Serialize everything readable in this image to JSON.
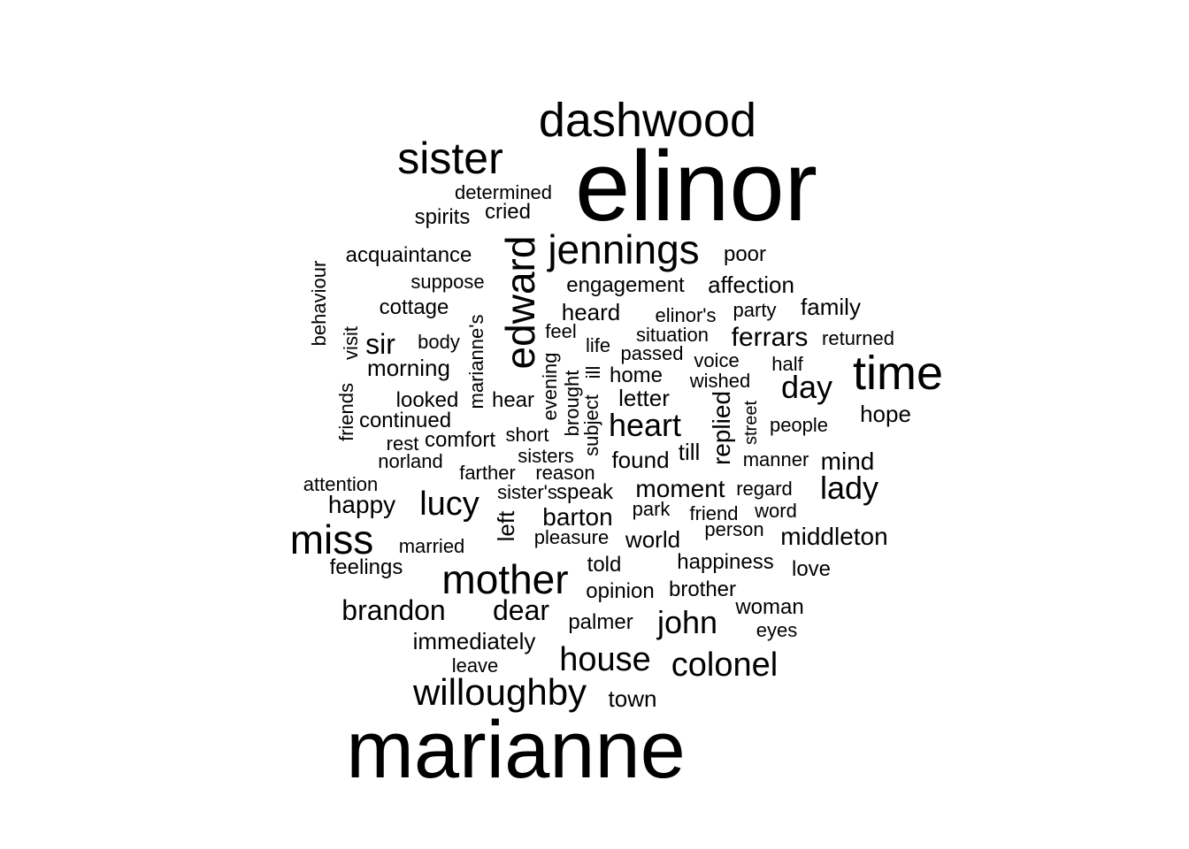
{
  "words": [
    {
      "text": "elinor"
    },
    {
      "text": "marianne"
    },
    {
      "text": "dashwood"
    },
    {
      "text": "sister"
    },
    {
      "text": "jennings"
    },
    {
      "text": "edward"
    },
    {
      "text": "time"
    },
    {
      "text": "miss"
    },
    {
      "text": "mother"
    },
    {
      "text": "willoughby"
    },
    {
      "text": "house"
    },
    {
      "text": "colonel"
    },
    {
      "text": "lucy"
    },
    {
      "text": "heart"
    },
    {
      "text": "day"
    },
    {
      "text": "lady"
    },
    {
      "text": "john"
    },
    {
      "text": "brandon"
    },
    {
      "text": "dear"
    },
    {
      "text": "sir"
    },
    {
      "text": "ferrars"
    },
    {
      "text": "replied"
    },
    {
      "text": "moment"
    },
    {
      "text": "barton"
    },
    {
      "text": "middleton"
    },
    {
      "text": "mind"
    },
    {
      "text": "hope"
    },
    {
      "text": "happy"
    },
    {
      "text": "morning"
    },
    {
      "text": "heard"
    },
    {
      "text": "affection"
    },
    {
      "text": "family"
    },
    {
      "text": "left"
    },
    {
      "text": "world"
    },
    {
      "text": "found"
    },
    {
      "text": "letter"
    },
    {
      "text": "home"
    },
    {
      "text": "looked"
    },
    {
      "text": "hear"
    },
    {
      "text": "cried"
    },
    {
      "text": "spirits"
    },
    {
      "text": "acquaintance"
    },
    {
      "text": "poor"
    },
    {
      "text": "engagement"
    },
    {
      "text": "suppose"
    },
    {
      "text": "cottage"
    },
    {
      "text": "elinor's"
    },
    {
      "text": "party"
    },
    {
      "text": "determined"
    },
    {
      "text": "behaviour"
    },
    {
      "text": "visit"
    },
    {
      "text": "body"
    },
    {
      "text": "marianne's"
    },
    {
      "text": "feel"
    },
    {
      "text": "life"
    },
    {
      "text": "situation"
    },
    {
      "text": "returned"
    },
    {
      "text": "passed"
    },
    {
      "text": "voice"
    },
    {
      "text": "half"
    },
    {
      "text": "wished"
    },
    {
      "text": "friends"
    },
    {
      "text": "evening"
    },
    {
      "text": "brought"
    },
    {
      "text": "ill"
    },
    {
      "text": "subject"
    },
    {
      "text": "street"
    },
    {
      "text": "continued"
    },
    {
      "text": "people"
    },
    {
      "text": "rest"
    },
    {
      "text": "comfort"
    },
    {
      "text": "short"
    },
    {
      "text": "till"
    },
    {
      "text": "norland"
    },
    {
      "text": "sisters"
    },
    {
      "text": "manner"
    },
    {
      "text": "farther"
    },
    {
      "text": "reason"
    },
    {
      "text": "attention"
    },
    {
      "text": "sister's"
    },
    {
      "text": "speak"
    },
    {
      "text": "regard"
    },
    {
      "text": "park"
    },
    {
      "text": "friend"
    },
    {
      "text": "word"
    },
    {
      "text": "person"
    },
    {
      "text": "married"
    },
    {
      "text": "pleasure"
    },
    {
      "text": "feelings"
    },
    {
      "text": "told"
    },
    {
      "text": "happiness"
    },
    {
      "text": "love"
    },
    {
      "text": "opinion"
    },
    {
      "text": "brother"
    },
    {
      "text": "woman"
    },
    {
      "text": "palmer"
    },
    {
      "text": "eyes"
    },
    {
      "text": "immediately"
    },
    {
      "text": "leave"
    },
    {
      "text": "town"
    }
  ]
}
